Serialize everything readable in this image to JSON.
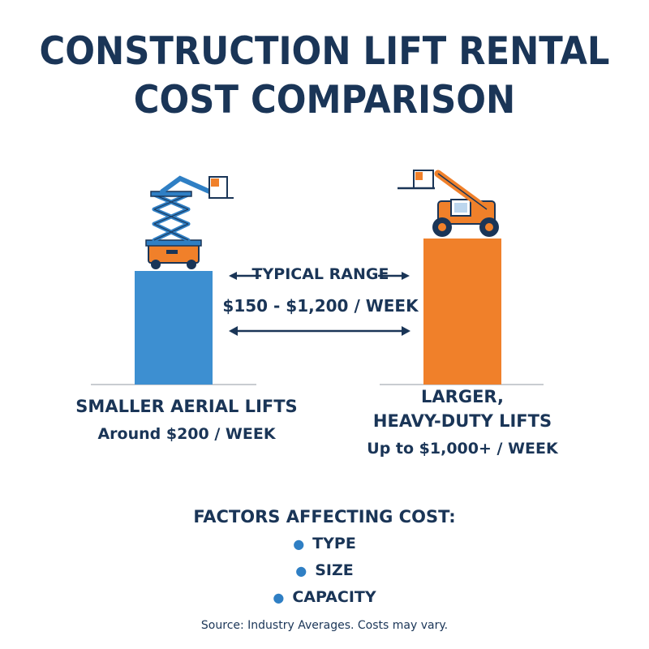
{
  "title_lines": [
    "CONSTRUCTION LIFT RENTAL",
    "COST COMPARISON"
  ],
  "chart_data": {
    "type": "bar",
    "categories": [
      "SMALLER AERIAL LIFTS",
      "LARGER, HEAVY-DUTY LIFTS"
    ],
    "values": [
      200,
      1000
    ],
    "value_labels": [
      "Around $200 / WEEK",
      "Up to $1,000+ / WEEK"
    ],
    "colors": [
      "#3d8fd1",
      "#f0802a"
    ],
    "range_label": "TYPICAL RANGE",
    "range_value": "$150 - $1,200 / WEEK",
    "range": [
      150,
      1200
    ]
  },
  "labels": {
    "left_name": "SMALLER AERIAL LIFTS",
    "left_value": "Around $200 / WEEK",
    "right_name_line1": "LARGER,",
    "right_name_line2": "HEAVY-DUTY LIFTS",
    "right_value": "Up to $1,000+ / WEEK"
  },
  "factors": {
    "title": "FACTORS AFFECTING COST:",
    "items": [
      "TYPE",
      "SIZE",
      "CAPACITY"
    ]
  },
  "source": "Source: Industry Averages. Costs may vary.",
  "icons": [
    "scissor-lift-icon",
    "telehandler-icon",
    "double-arrow-icon"
  ]
}
